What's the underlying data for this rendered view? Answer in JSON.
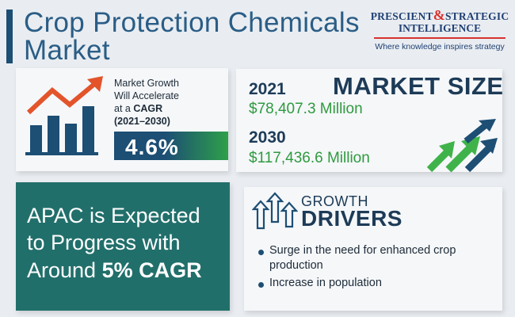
{
  "title": {
    "line1": "Crop Protection Chemicals",
    "line2": "Market"
  },
  "logo": {
    "name_left": "PRESCIENT",
    "name_amp": "&",
    "name_right": "STRATEGIC",
    "name_line2": "INTELLIGENCE",
    "tagline": "Where knowledge inspires strategy"
  },
  "growth": {
    "text_line1": "Market Growth",
    "text_line2": "Will Accelerate",
    "text_line3_prefix": "at a ",
    "text_line3_bold": "CAGR",
    "period": "(2021–2030)",
    "cagr": "4.6%"
  },
  "market_size": {
    "heading": "MARKET SIZE",
    "year_1": "2021",
    "value_1": "$78,407.3 Million",
    "year_2": "2030",
    "value_2": "$117,436.6 Million"
  },
  "apac": {
    "line1": "APAC is Expected",
    "line2": "to Progress with",
    "line3_prefix": "Around ",
    "line3_bold": "5% CAGR"
  },
  "drivers": {
    "label1": "GROWTH",
    "label2": "DRIVERS",
    "items": [
      "Surge in the need for enhanced crop production",
      "Increase in population"
    ]
  },
  "colors": {
    "primary": "#1d4e74",
    "accent_green": "#2f9a3f",
    "teal": "#216f6b",
    "logo_red": "#d9322e",
    "background": "#e9edf1"
  },
  "icons": [
    "bar-chart-growth-icon",
    "growth-arrows-icon",
    "up-arrows-icon"
  ]
}
